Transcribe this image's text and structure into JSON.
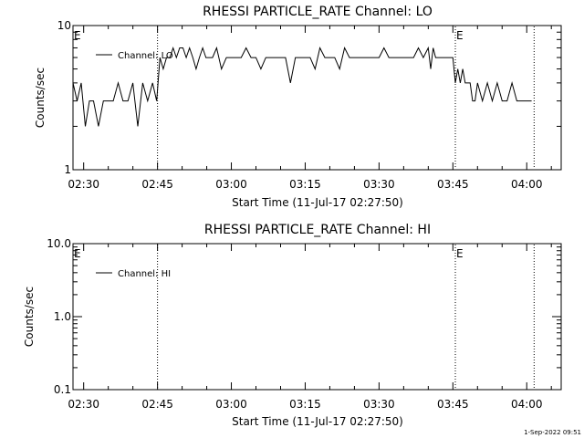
{
  "chart_data": [
    {
      "type": "line",
      "title": "RHESSI PARTICLE_RATE Channel: LO",
      "xlabel": "Start Time (11-Jul-17 02:27:50)",
      "ylabel": "Counts/sec",
      "y_scale": "log",
      "ylim": [
        1,
        10
      ],
      "ytick_labels": [
        "1",
        "10"
      ],
      "x_start": "02:27:50",
      "x_end": "04:07:00",
      "xtick_labels": [
        "02:30",
        "02:45",
        "03:00",
        "03:15",
        "03:30",
        "03:45",
        "04:00"
      ],
      "vlines": [
        "02:45:00",
        "03:45:30",
        "04:01:30"
      ],
      "markers": [
        {
          "label": "E",
          "time": "02:27:50"
        },
        {
          "label": "E",
          "time": "03:45:30"
        }
      ],
      "legend": "top-left",
      "series": [
        {
          "name": "Channel: LO",
          "x": [
            "02:27:50",
            "02:28:40",
            "02:29:30",
            "02:30:20",
            "02:31:10",
            "02:32:00",
            "02:33:00",
            "02:34:00",
            "02:35:00",
            "02:36:00",
            "02:37:00",
            "02:38:00",
            "02:39:00",
            "02:40:00",
            "02:41:00",
            "02:42:00",
            "02:43:00",
            "02:44:00",
            "02:44:50",
            "02:45:30",
            "02:46:10",
            "02:46:50",
            "02:47:30",
            "02:48:10",
            "02:48:50",
            "02:49:30",
            "02:50:10",
            "02:50:50",
            "02:51:30",
            "02:52:10",
            "02:52:50",
            "02:53:30",
            "02:54:10",
            "02:54:50",
            "02:55:30",
            "02:56:10",
            "02:57:00",
            "02:58:00",
            "02:59:00",
            "03:00:00",
            "03:01:00",
            "03:02:00",
            "03:03:00",
            "03:04:00",
            "03:05:00",
            "03:06:00",
            "03:07:00",
            "03:08:00",
            "03:09:00",
            "03:10:00",
            "03:11:00",
            "03:12:00",
            "03:13:00",
            "03:14:00",
            "03:15:00",
            "03:16:00",
            "03:17:00",
            "03:18:00",
            "03:19:00",
            "03:20:00",
            "03:21:00",
            "03:22:00",
            "03:23:00",
            "03:24:00",
            "03:25:00",
            "03:26:00",
            "03:27:00",
            "03:28:00",
            "03:29:00",
            "03:30:00",
            "03:31:00",
            "03:32:00",
            "03:33:00",
            "03:34:00",
            "03:35:00",
            "03:36:00",
            "03:37:00",
            "03:38:00",
            "03:39:00",
            "03:40:00",
            "03:40:30",
            "03:41:00",
            "03:41:30",
            "03:42:00",
            "03:42:30",
            "03:43:00",
            "03:43:30",
            "03:44:00",
            "03:44:30",
            "03:45:00",
            "03:45:30",
            "03:46:00",
            "03:46:30",
            "03:47:00",
            "03:47:30",
            "03:48:00",
            "03:48:30",
            "03:49:00",
            "03:49:30",
            "03:50:00",
            "03:51:00",
            "03:52:00",
            "03:53:00",
            "03:54:00",
            "03:55:00",
            "03:56:00",
            "03:57:00",
            "03:58:00",
            "03:59:00",
            "04:00:00",
            "04:01:00"
          ],
          "values": [
            4,
            3,
            4,
            2,
            3,
            3,
            2,
            3,
            3,
            3,
            4,
            3,
            3,
            4,
            2,
            4,
            3,
            4,
            3,
            6,
            5,
            6,
            6,
            7,
            6,
            7,
            7,
            6,
            7,
            6,
            5,
            6,
            7,
            6,
            6,
            6,
            7,
            5,
            6,
            6,
            6,
            6,
            7,
            6,
            6,
            5,
            6,
            6,
            6,
            6,
            6,
            4,
            6,
            6,
            6,
            6,
            5,
            7,
            6,
            6,
            6,
            5,
            7,
            6,
            6,
            6,
            6,
            6,
            6,
            6,
            7,
            6,
            6,
            6,
            6,
            6,
            6,
            7,
            6,
            7,
            5,
            7,
            6,
            6,
            6,
            6,
            6,
            6,
            6,
            6,
            4,
            5,
            4,
            5,
            4,
            4,
            4,
            3,
            3,
            4,
            3,
            4,
            3,
            4,
            3,
            3,
            4,
            3,
            3,
            3,
            3
          ]
        }
      ]
    },
    {
      "type": "line",
      "title": "RHESSI PARTICLE_RATE Channel: HI",
      "xlabel": "Start Time (11-Jul-17 02:27:50)",
      "ylabel": "Counts/sec",
      "y_scale": "log",
      "ylim": [
        0.1,
        10
      ],
      "ytick_labels": [
        "0.1",
        "1.0",
        "10.0"
      ],
      "x_start": "02:27:50",
      "x_end": "04:07:00",
      "xtick_labels": [
        "02:30",
        "02:45",
        "03:00",
        "03:15",
        "03:30",
        "03:45",
        "04:00"
      ],
      "vlines": [
        "02:45:00",
        "03:45:30",
        "04:01:30"
      ],
      "markers": [
        {
          "label": "E",
          "time": "02:27:50"
        },
        {
          "label": "E",
          "time": "03:45:30"
        }
      ],
      "legend": "top-left",
      "series": [
        {
          "name": "Channel: HI",
          "x": [],
          "values": []
        }
      ]
    }
  ],
  "footer": {
    "timestamp": "1-Sep-2022 09:51"
  }
}
